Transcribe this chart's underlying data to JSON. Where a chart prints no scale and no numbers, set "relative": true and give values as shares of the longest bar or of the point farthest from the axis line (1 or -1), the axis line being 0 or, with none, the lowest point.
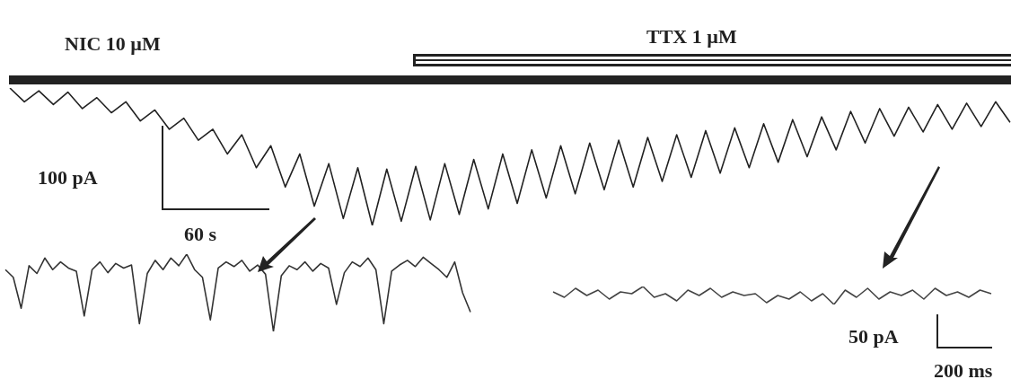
{
  "chart_data": [
    {
      "type": "line",
      "relative": true,
      "color": "#222222",
      "annotations": [
        "NIC 10  µM",
        "TTX 1  µM",
        "100 pA",
        "60 s"
      ],
      "categories": [
        null,
        null,
        null,
        null,
        null,
        null,
        null,
        null,
        null,
        null,
        null,
        null,
        null,
        null,
        null,
        null,
        null,
        null,
        null,
        null,
        null,
        null,
        null,
        null,
        null,
        null,
        null,
        null,
        null,
        null,
        null,
        null,
        null,
        null,
        null,
        null,
        null,
        null,
        null,
        null,
        null,
        null,
        null,
        null,
        null,
        null,
        null,
        null,
        null,
        null,
        null,
        null,
        null,
        null,
        null,
        null,
        null,
        null,
        null,
        null,
        null,
        null,
        null,
        null,
        null,
        null,
        null,
        null,
        null,
        null
      ],
      "values": [
        1.0,
        0.9,
        0.98,
        0.88,
        0.97,
        0.85,
        0.93,
        0.82,
        0.9,
        0.76,
        0.84,
        0.7,
        0.78,
        0.62,
        0.7,
        0.52,
        0.66,
        0.42,
        0.58,
        0.28,
        0.52,
        0.14,
        0.45,
        0.05,
        0.42,
        0.0,
        0.41,
        0.03,
        0.43,
        0.04,
        0.45,
        0.08,
        0.48,
        0.12,
        0.52,
        0.16,
        0.55,
        0.2,
        0.58,
        0.23,
        0.6,
        0.26,
        0.62,
        0.28,
        0.64,
        0.32,
        0.66,
        0.35,
        0.69,
        0.38,
        0.71,
        0.42,
        0.74,
        0.46,
        0.77,
        0.5,
        0.79,
        0.55,
        0.83,
        0.6,
        0.85,
        0.65,
        0.86,
        0.68,
        0.88,
        0.7,
        0.89,
        0.72,
        0.9,
        0.75
      ]
    },
    {
      "type": "line",
      "relative": true,
      "color": "#333333",
      "categories": [
        null,
        null,
        null,
        null,
        null,
        null,
        null,
        null,
        null,
        null,
        null,
        null,
        null,
        null,
        null,
        null,
        null,
        null,
        null,
        null,
        null,
        null,
        null,
        null,
        null,
        null,
        null,
        null,
        null,
        null,
        null,
        null,
        null,
        null,
        null,
        null,
        null,
        null,
        null,
        null,
        null,
        null,
        null,
        null,
        null,
        null,
        null,
        null,
        null,
        null,
        null,
        null,
        null,
        null,
        null,
        null,
        null,
        null,
        null,
        null
      ],
      "values": [
        0.8,
        0.7,
        0.3,
        0.85,
        0.75,
        0.95,
        0.8,
        0.9,
        0.82,
        0.78,
        0.2,
        0.8,
        0.9,
        0.76,
        0.88,
        0.82,
        0.86,
        0.1,
        0.75,
        0.92,
        0.8,
        0.95,
        0.85,
        1.0,
        0.8,
        0.7,
        0.15,
        0.82,
        0.9,
        0.84,
        0.92,
        0.78,
        0.86,
        0.74,
        0.0,
        0.72,
        0.85,
        0.8,
        0.9,
        0.78,
        0.88,
        0.82,
        0.35,
        0.76,
        0.9,
        0.84,
        0.95,
        0.8,
        0.1,
        0.78,
        0.86,
        0.92,
        0.84,
        0.96,
        0.88,
        0.8,
        0.7,
        0.9,
        0.5,
        0.25
      ]
    },
    {
      "type": "line",
      "relative": true,
      "color": "#444444",
      "annotations": [
        "50 pA",
        "200 ms"
      ],
      "categories": [
        null,
        null,
        null,
        null,
        null,
        null,
        null,
        null,
        null,
        null,
        null,
        null,
        null,
        null,
        null,
        null,
        null,
        null,
        null,
        null,
        null,
        null,
        null,
        null,
        null,
        null,
        null,
        null,
        null,
        null,
        null,
        null,
        null,
        null,
        null,
        null,
        null,
        null,
        null,
        null
      ],
      "values": [
        0.7,
        0.4,
        0.9,
        0.5,
        0.8,
        0.3,
        0.7,
        0.6,
        1.0,
        0.4,
        0.6,
        0.2,
        0.8,
        0.5,
        0.9,
        0.4,
        0.7,
        0.5,
        0.6,
        0.1,
        0.5,
        0.3,
        0.7,
        0.2,
        0.6,
        0.0,
        0.8,
        0.4,
        0.9,
        0.3,
        0.7,
        0.5,
        0.8,
        0.3,
        0.9,
        0.5,
        0.7,
        0.4,
        0.8,
        0.6
      ]
    }
  ]
}
